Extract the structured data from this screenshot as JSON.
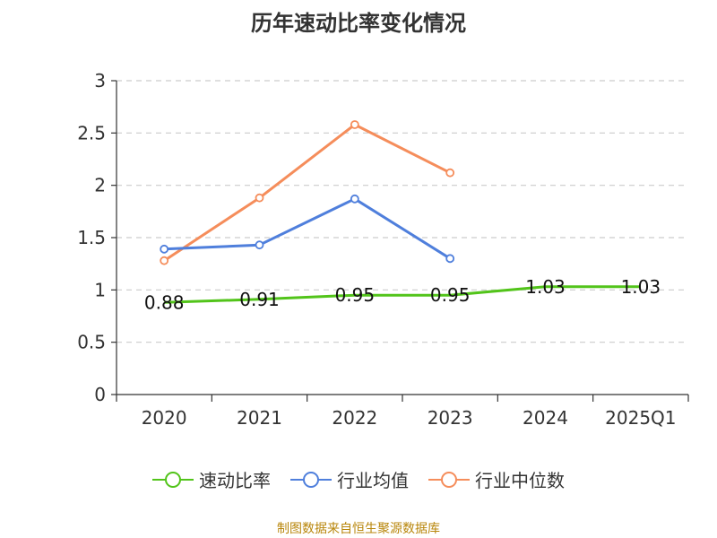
{
  "chart_data": {
    "type": "line",
    "title": "历年速动比率变化情况",
    "categories": [
      "2020",
      "2021",
      "2022",
      "2023",
      "2024",
      "2025Q1"
    ],
    "ylim": [
      0,
      3
    ],
    "yticks": [
      0,
      0.5,
      1,
      1.5,
      2,
      2.5,
      3
    ],
    "ytick_labels": [
      "0",
      "0.5",
      "1",
      "1.5",
      "2",
      "2.5",
      "3"
    ],
    "grid": true,
    "legend_position": "bottom",
    "series": [
      {
        "name": "速动比率",
        "color": "#52c41a",
        "values": [
          0.88,
          0.91,
          0.95,
          0.95,
          1.03,
          1.03
        ],
        "data_labels": [
          "0.88",
          "0.91",
          "0.95",
          "0.95",
          "1.03",
          "1.03"
        ]
      },
      {
        "name": "行业均值",
        "color": "#4f7fdc",
        "values": [
          1.39,
          1.43,
          1.87,
          1.3,
          null,
          null
        ]
      },
      {
        "name": "行业中位数",
        "color": "#f58d5b",
        "values": [
          1.28,
          1.88,
          2.58,
          2.12,
          null,
          null
        ]
      }
    ],
    "source_note": "制图数据来自恒生聚源数据库"
  }
}
